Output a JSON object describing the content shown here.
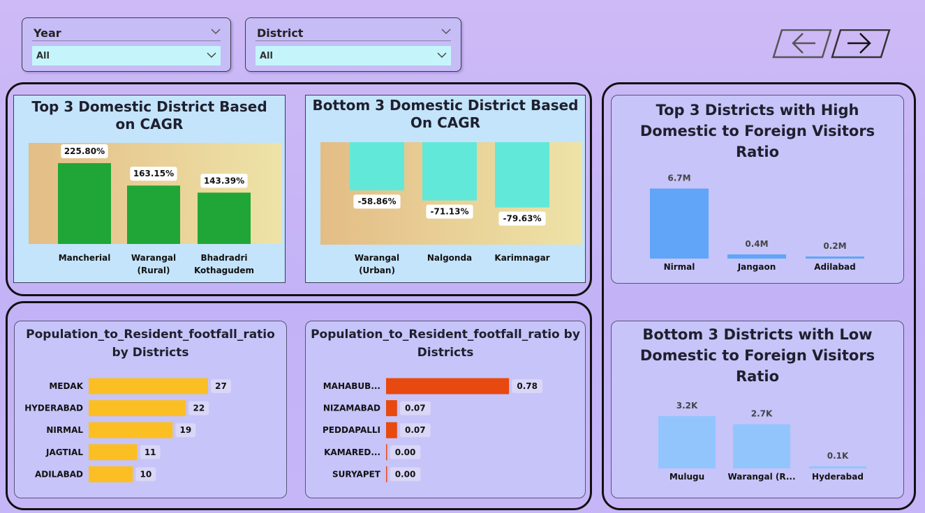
{
  "filters": {
    "year": {
      "label": "Year",
      "value": "All"
    },
    "district": {
      "label": "District",
      "value": "All"
    }
  },
  "nav": {
    "back_icon": "arrow-left-icon",
    "forward_icon": "arrow-right-icon"
  },
  "colors": {
    "green_bar": "#1fa637",
    "teal_bar": "#62e8d8",
    "blue_bar": "#60a5f8",
    "light_blue_bar": "#93c5fd",
    "yellow_bar": "#fbbf24",
    "orange_bar": "#e8490f"
  },
  "chart_data": [
    {
      "id": "top3-cagr",
      "type": "bar",
      "title": "Top 3 Domestic District Based on CAGR",
      "categories": [
        "Mancherial",
        "Warangal (Rural)",
        "Bhadradri Kothagudem"
      ],
      "values": [
        225.8,
        163.15,
        143.39
      ],
      "labels": [
        "225.80%",
        "163.15%",
        "143.39%"
      ],
      "ylim": [
        0,
        260
      ]
    },
    {
      "id": "bottom3-cagr",
      "type": "bar",
      "title": "Bottom 3 Domestic District Based On CAGR",
      "categories": [
        "Warangal (Urban)",
        "Nalgonda",
        "Karimnagar"
      ],
      "values": [
        -58.86,
        -71.13,
        -79.63
      ],
      "labels": [
        "-58.86%",
        "-71.13%",
        "-79.63%"
      ],
      "ylim": [
        -100,
        0
      ]
    },
    {
      "id": "top3-ratio",
      "type": "bar",
      "title": "Top 3 Districts with High Domestic to Foreign Visitors Ratio",
      "categories": [
        "Nirmal",
        "Jangaon",
        "Adilabad"
      ],
      "values": [
        6700000,
        400000,
        200000
      ],
      "labels": [
        "6.7M",
        "0.4M",
        "0.2M"
      ],
      "ylim": [
        0,
        7000000
      ]
    },
    {
      "id": "bottom3-ratio",
      "type": "bar",
      "title": "Bottom 3 Districts with Low Domestic to Foreign Visitors Ratio",
      "categories": [
        "Mulugu",
        "Warangal (R...",
        "Hyderabad"
      ],
      "values": [
        3200,
        2700,
        100
      ],
      "labels": [
        "3.2K",
        "2.7K",
        "0.1K"
      ],
      "ylim": [
        0,
        3500
      ]
    },
    {
      "id": "pop-ratio-top",
      "type": "bar",
      "orientation": "horizontal",
      "title": "Population_to_Resident_footfall_ratio by Districts",
      "categories": [
        "MEDAK",
        "HYDERABAD",
        "NIRMAL",
        "JAGTIAL",
        "ADILABAD"
      ],
      "values": [
        27,
        22,
        19,
        11,
        10
      ],
      "labels": [
        "27",
        "22",
        "19",
        "11",
        "10"
      ],
      "xlim": [
        0,
        30
      ]
    },
    {
      "id": "pop-ratio-bottom",
      "type": "bar",
      "orientation": "horizontal",
      "title": "Population_to_Resident_footfall_ratio by Districts",
      "categories": [
        "MAHABUB...",
        "NIZAMABAD",
        "PEDDAPALLI",
        "KAMARED...",
        "SURYAPET"
      ],
      "values": [
        0.78,
        0.07,
        0.07,
        0.0,
        0.0
      ],
      "labels": [
        "0.78",
        "0.07",
        "0.07",
        "0.00",
        "0.00"
      ],
      "xlim": [
        0,
        0.85
      ]
    }
  ]
}
